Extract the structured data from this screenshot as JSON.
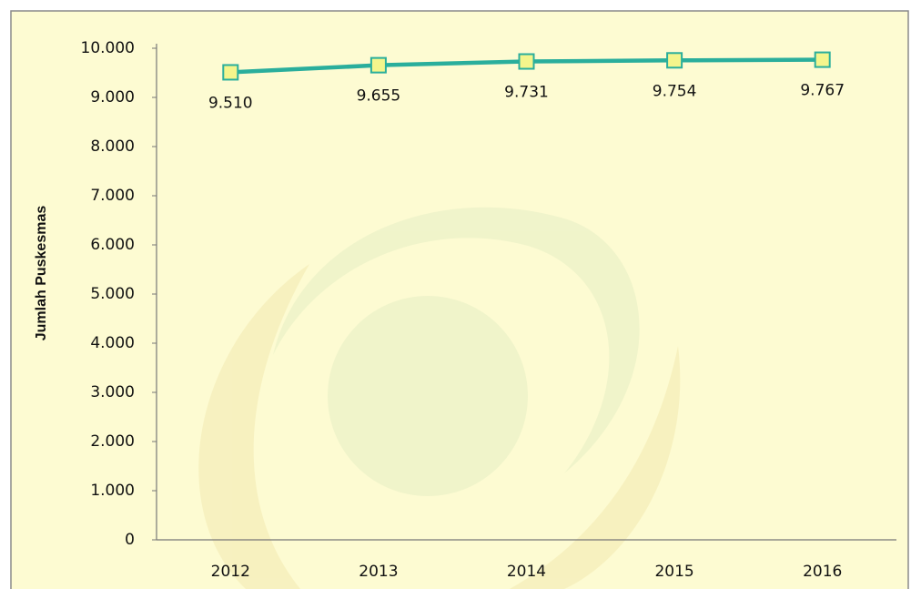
{
  "chart_data": {
    "type": "line",
    "y_label": "Jumlah Puskesmas",
    "categories": [
      "2012",
      "2013",
      "2014",
      "2015",
      "2016"
    ],
    "values": [
      9510,
      9655,
      9731,
      9754,
      9767
    ],
    "value_labels": [
      "9.510",
      "9.655",
      "9.731",
      "9.754",
      "9.767"
    ],
    "color": "#2aae9c",
    "marker_color": "#f4f58c",
    "ylim": [
      0,
      10000
    ],
    "yticks": [
      0,
      {
        "value": 1000,
        "label": "1.000"
      },
      {
        "value": 2000,
        "label": "2.000"
      },
      {
        "value": 3000,
        "label": "3.000"
      },
      {
        "value": 4000,
        "label": "4.000"
      },
      {
        "value": 5000,
        "label": "5.000"
      },
      {
        "value": 6000,
        "label": "6.000"
      },
      {
        "value": 7000,
        "label": "7.000"
      },
      {
        "value": 8000,
        "label": "8.000"
      },
      {
        "value": 9000,
        "label": "9.000"
      },
      {
        "value": 10000,
        "label": "10.000"
      }
    ]
  }
}
